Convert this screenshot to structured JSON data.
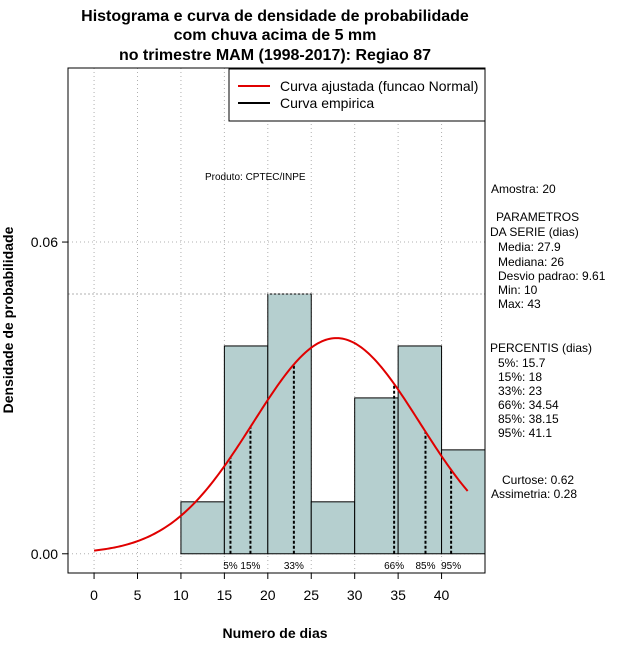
{
  "title_lines": [
    "Histograma e curva de densidade de probabilidade",
    "com chuva acima de 5 mm",
    "no trimestre MAM (1998-2017): Regiao 87"
  ],
  "legend": {
    "fitted": "Curva ajustada (funcao Normal)",
    "empirical": "Curva empirica"
  },
  "product_label": "Produto: CPTEC/INPE",
  "side_panel": {
    "sample": "Amostra: 20",
    "params_title_1": "PARAMETROS",
    "params_title_2": "DA SERIE (dias)",
    "media": "Media: 27.9",
    "mediana": "Mediana: 26",
    "desvio": "Desvio padrao: 9.61",
    "min": "Min: 10",
    "max": "Max: 43",
    "percentis_title": "PERCENTIS (dias)",
    "p5": "5%: 15.7",
    "p15": "15%: 18",
    "p33": "33%: 23",
    "p66": "66%: 34.54",
    "p85": "85%: 38.15",
    "p95": "95%: 41.1",
    "curtose": "Curtose: 0.62",
    "assimetria": "Assimetria: 0.28"
  },
  "colors": {
    "bar_fill": "#b5cfcf",
    "fitted_curve": "#e00000",
    "grid": "#b0b0b0"
  },
  "chart_data": {
    "type": "bar",
    "xlabel": "Numero de dias",
    "ylabel": "Densidade de probabilidade",
    "xlim": [
      -3,
      45
    ],
    "ylim": [
      -0.0037,
      0.0935
    ],
    "x_ticks": [
      0,
      5,
      10,
      15,
      20,
      25,
      30,
      35,
      40
    ],
    "x_tick_labels": [
      "0",
      "5",
      "10",
      "15",
      "20",
      "25",
      "30",
      "35",
      "40"
    ],
    "y_ticks": [
      0.0,
      0.06
    ],
    "y_tick_labels": [
      "0.00",
      "0.06"
    ],
    "bins": [
      {
        "x0": 10,
        "x1": 15,
        "density": 0.01
      },
      {
        "x0": 15,
        "x1": 20,
        "density": 0.04
      },
      {
        "x0": 20,
        "x1": 25,
        "density": 0.05
      },
      {
        "x0": 25,
        "x1": 30,
        "density": 0.01
      },
      {
        "x0": 30,
        "x1": 35,
        "density": 0.03
      },
      {
        "x0": 35,
        "x1": 40,
        "density": 0.04
      },
      {
        "x0": 40,
        "x1": 45,
        "density": 0.02
      }
    ],
    "reference_line_y": 0.05,
    "normal_fit": {
      "mean": 27.9,
      "sd": 9.61,
      "x_from": 0,
      "x_to": 43
    },
    "percentiles": [
      {
        "label": "5%",
        "x": 15.7
      },
      {
        "label": "15%",
        "x": 18
      },
      {
        "label": "33%",
        "x": 23
      },
      {
        "label": "66%",
        "x": 34.54
      },
      {
        "label": "85%",
        "x": 38.15
      },
      {
        "label": "95%",
        "x": 41.1
      }
    ]
  }
}
